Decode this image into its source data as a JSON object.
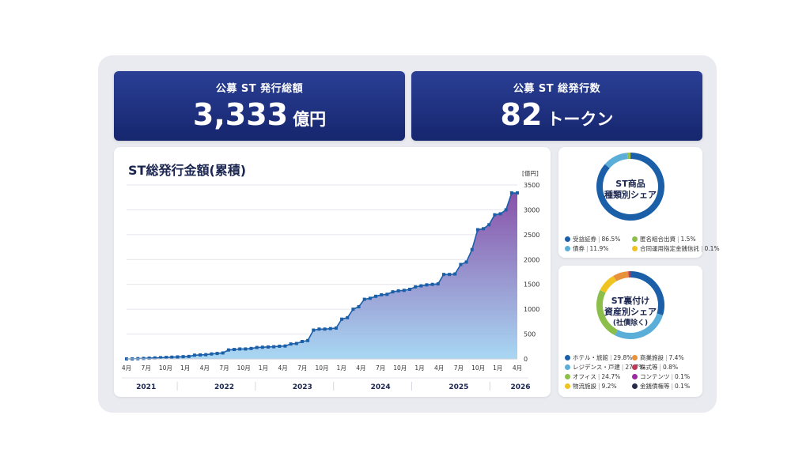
{
  "kpis": [
    {
      "label": "公募 ST 発行総額",
      "value": "3,333",
      "unit": "億円"
    },
    {
      "label": "公募 ST 総発行数",
      "value": "82",
      "unit": "トークン"
    }
  ],
  "colors": {
    "accent": "#1a5fa8",
    "navy": "#16266e",
    "area_top": "#7b3fa0",
    "area_bottom": "#9fd3f2"
  },
  "chart_data": [
    {
      "type": "area",
      "title": "ST総発行金額(累積)",
      "ylabel": "[億円]",
      "ylim": [
        0,
        3500
      ],
      "yticks": [
        0,
        500,
        1000,
        1500,
        2000,
        2500,
        3000,
        3500
      ],
      "x_tick_labels": [
        "4月",
        "7月",
        "10月",
        "1月",
        "4月",
        "7月",
        "10月",
        "1月",
        "4月",
        "7月",
        "10月",
        "1月",
        "4月",
        "7月",
        "10月",
        "1月",
        "4月",
        "7月",
        "10月",
        "1月",
        "4月"
      ],
      "years": [
        "2021",
        "2022",
        "2023",
        "2024",
        "2025",
        "2026"
      ],
      "values": [
        0,
        0,
        5,
        10,
        15,
        20,
        25,
        30,
        35,
        40,
        45,
        50,
        75,
        80,
        85,
        100,
        110,
        120,
        180,
        190,
        200,
        200,
        210,
        230,
        235,
        240,
        245,
        255,
        260,
        300,
        310,
        350,
        370,
        580,
        600,
        600,
        610,
        620,
        800,
        830,
        1000,
        1050,
        1200,
        1220,
        1260,
        1290,
        1300,
        1350,
        1370,
        1380,
        1400,
        1450,
        1470,
        1490,
        1500,
        1510,
        1700,
        1700,
        1710,
        1900,
        1950,
        2200,
        2600,
        2620,
        2700,
        2900,
        2920,
        3000,
        3340,
        3340
      ]
    },
    {
      "type": "pie",
      "title": "ST商品\n種類別シェア",
      "slices": [
        {
          "label": "受益証券",
          "value": 86.5,
          "color": "#1a5fa8"
        },
        {
          "label": "債券",
          "value": 11.9,
          "color": "#5aaed8"
        },
        {
          "label": "匿名組合出資",
          "value": 1.5,
          "color": "#8cbf4a"
        },
        {
          "label": "合同運用指定金銭信託",
          "value": 0.1,
          "color": "#f0c420"
        }
      ]
    },
    {
      "type": "pie",
      "title": "ST裏付け\n資産別シェア",
      "subtitle": "(社債除く)",
      "slices": [
        {
          "label": "ホテル・旅館",
          "value": 29.8,
          "color": "#1a5fa8"
        },
        {
          "label": "レジデンス・戸建",
          "value": 27.7,
          "color": "#5aaed8"
        },
        {
          "label": "オフィス",
          "value": 24.7,
          "color": "#8cbf4a"
        },
        {
          "label": "物流施設",
          "value": 9.2,
          "color": "#f0c420"
        },
        {
          "label": "商業施設",
          "value": 7.4,
          "color": "#e8903a"
        },
        {
          "label": "株式等",
          "value": 0.8,
          "color": "#c03a5a"
        },
        {
          "label": "コンテンツ",
          "value": 0.1,
          "color": "#9a2aa0"
        },
        {
          "label": "金銭債権等",
          "value": 0.1,
          "color": "#2a2a4a"
        }
      ]
    }
  ]
}
